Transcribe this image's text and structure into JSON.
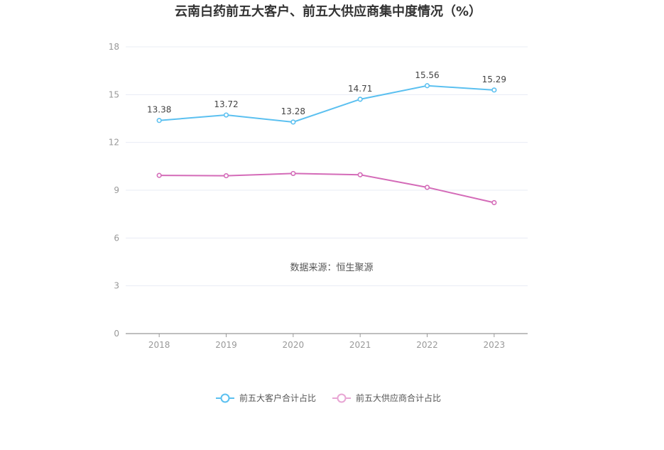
{
  "chart_data": {
    "type": "line",
    "title": "云南白药前五大客户、前五大供应商集中度情况（%）",
    "source": "数据来源：恒生聚源",
    "categories": [
      "2018",
      "2019",
      "2020",
      "2021",
      "2022",
      "2023"
    ],
    "y_ticks": [
      "0",
      "3",
      "6",
      "9",
      "12",
      "15",
      "18"
    ],
    "ylim": [
      0,
      18
    ],
    "grid": true,
    "legend_position": "bottom",
    "series": [
      {
        "name": "前五大客户合计占比",
        "color": "#5bc0f0",
        "values": [
          13.38,
          13.72,
          13.28,
          14.71,
          15.56,
          15.29
        ],
        "labels": [
          "13.38",
          "13.72",
          "13.28",
          "14.71",
          "15.56",
          "15.29"
        ]
      },
      {
        "name": "前五大供应商合计占比",
        "color": "#d46bb8",
        "values": [
          9.93,
          9.91,
          10.05,
          9.97,
          9.18,
          8.22
        ]
      }
    ]
  }
}
